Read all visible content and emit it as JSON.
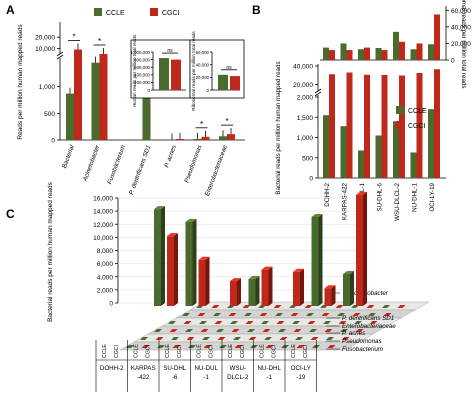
{
  "panel_labels": {
    "a": "A",
    "b": "B",
    "c": "C"
  },
  "colors": {
    "ccle": "#4a6b2d",
    "cgci": "#c0281c",
    "gray_floor": "#b8b8b8"
  },
  "legend": {
    "ccle": "CCLE",
    "cgci": "CGCI"
  },
  "chart_data": [
    {
      "id": "A-main",
      "type": "bar",
      "ylabel": "Reads per million human mapped reads",
      "ylim": [
        0,
        30000
      ],
      "broken_axis": true,
      "yticks_low": [
        "0",
        "500",
        "1,000"
      ],
      "yticks_high": [
        "10,000",
        "20,000"
      ],
      "categories": [
        "Bacterial",
        "Acinetobacter",
        "Fusobacterium",
        "P. dentrificans SD1",
        "P. acnes",
        "Pseudomonas",
        "Enterobacteriaceae"
      ],
      "series": [
        {
          "name": "CCLE",
          "values": [
            870,
            1450,
            0,
            830,
            10,
            20,
            70
          ]
        },
        {
          "name": "CGCI",
          "values": [
            9000,
            5000,
            0,
            0,
            20,
            60,
            110
          ]
        }
      ],
      "significance": [
        "*",
        "*",
        "",
        "",
        "",
        "*",
        "*"
      ]
    },
    {
      "id": "A-inset-1",
      "type": "bar",
      "ylabel": "Human reads per million total reads",
      "yticks": [
        "0",
        "200,000",
        "400,000",
        "600,000",
        "800,000",
        "1,000,000"
      ],
      "ylim": [
        0,
        1000000
      ],
      "series": [
        {
          "name": "CCLE",
          "values": [
            840000
          ]
        },
        {
          "name": "CGCI",
          "values": [
            800000
          ]
        }
      ],
      "significance": "ns"
    },
    {
      "id": "A-inset-2",
      "type": "bar",
      "ylabel": "Ribosomal reads per million total reads",
      "yticks": [
        "0",
        "20,000",
        "40,000",
        "60,000"
      ],
      "ylim": [
        0,
        60000
      ],
      "series": [
        {
          "name": "CCLE",
          "values": [
            24000
          ]
        },
        {
          "name": "CGCI",
          "values": [
            22000
          ]
        }
      ],
      "significance": "ns"
    },
    {
      "id": "B-top",
      "type": "bar",
      "ylabel": "Ribosomal reads per million total reads",
      "yticks": [
        "0",
        "20,000",
        "40,000",
        "60,000"
      ],
      "ylim": [
        0,
        60000
      ],
      "categories": [
        "DOHH-2",
        "KARPAS-422",
        "NU-HUL-1",
        "SU-DHL-6",
        "WSU-DLCL-2",
        "NU-DHL-1",
        "OCI-LY-19"
      ],
      "series": [
        {
          "name": "CCLE",
          "values": [
            15000,
            20000,
            13000,
            14500,
            34000,
            13000,
            19000
          ]
        },
        {
          "name": "CGCI",
          "values": [
            12000,
            12000,
            15000,
            12000,
            22000,
            20000,
            55000
          ]
        }
      ]
    },
    {
      "id": "B-bottom",
      "type": "bar",
      "ylabel": "Bacterial reads per million human mapped reads",
      "broken_axis": true,
      "yticks_low": [
        "0",
        "500",
        "1,000",
        "1,500",
        "2,000"
      ],
      "yticks_high": [
        "20,000",
        "40,000"
      ],
      "categories": [
        "DOHH-2",
        "KARPAS-422",
        "NU-HUL-1",
        "SU-DHL-6",
        "WSU-DLCL-2",
        "NU-DHL-1",
        "OCI-LY-19"
      ],
      "series": [
        {
          "name": "CCLE",
          "values": [
            1550,
            1280,
            680,
            1050,
            1400,
            630,
            1700
          ]
        },
        {
          "name": "CGCI",
          "values": [
            15000,
            22000,
            13000,
            12000,
            10000,
            20000,
            35000
          ]
        }
      ]
    },
    {
      "id": "C",
      "type": "bar",
      "ylabel": "Bacterial reads per million human mapped reads",
      "yticks": [
        "0",
        "2,000",
        "4,000",
        "6,000",
        "8,000",
        "10,000",
        "12,000",
        "14,000",
        "16,000"
      ],
      "ylim": [
        0,
        16000
      ],
      "categories": [
        "DOHH-2",
        "KARPAS -422",
        "SU-DHL -6",
        "NU-DUL -1",
        "WSU- DLCL-2",
        "NU-DHL -1",
        "OCI-LY -19"
      ],
      "sub_labels": [
        "CCLE",
        "CGCI"
      ],
      "rows": [
        "Acinetobacter",
        "P. dentrificans SD1",
        "Enterobacteriaceae",
        "P. acnes",
        "Pseudomonas",
        "Fusobacterium"
      ],
      "series": [
        {
          "name": "CCLE",
          "values": [
            13600,
            11800,
            0,
            3800,
            0,
            12500,
            4500
          ]
        },
        {
          "name": "CGCI",
          "values": [
            9800,
            6500,
            3500,
            5100,
            4800,
            2500,
            15600
          ]
        }
      ]
    }
  ]
}
